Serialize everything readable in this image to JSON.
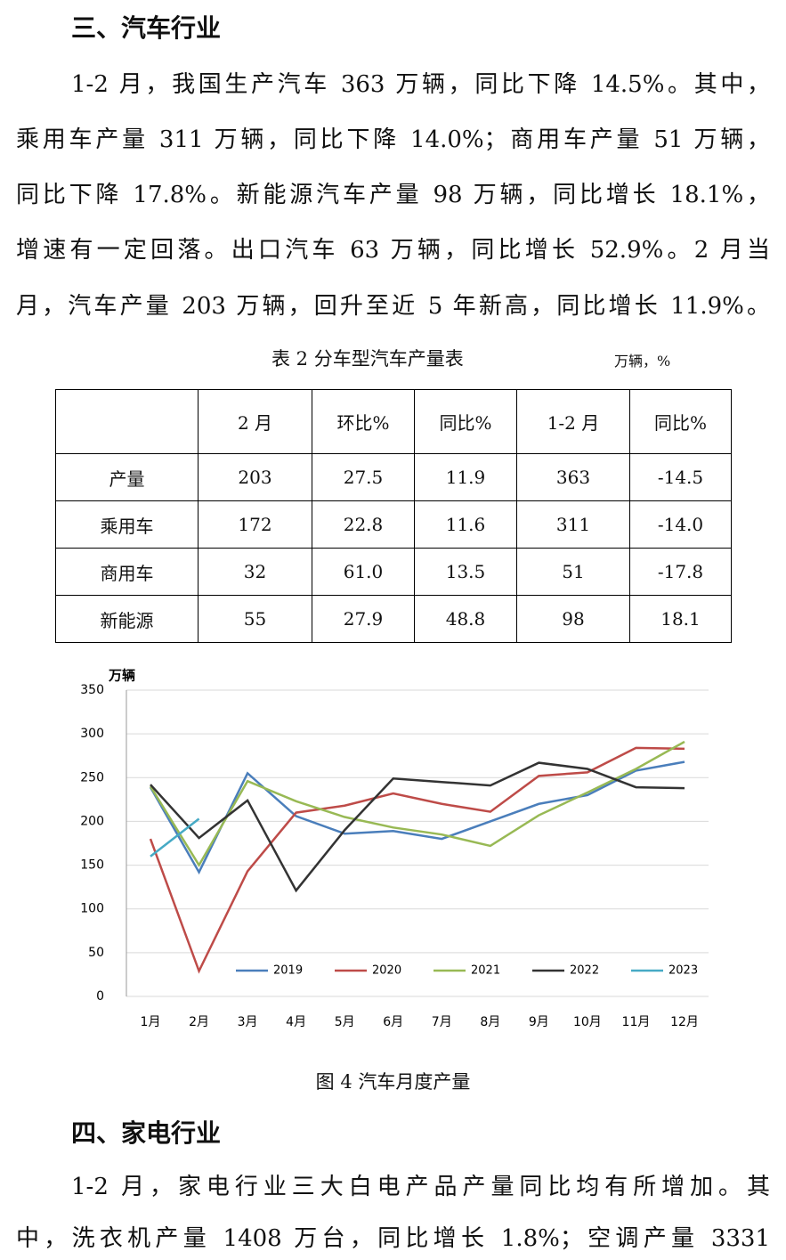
{
  "sections": [
    {
      "heading": "三、汽车行业",
      "lines": [
        "1-2 月，我国生产汽车 363 万辆，同比下降 14.5%。其中，",
        "乘用车产量 311 万辆，同比下降 14.0%；商用车产量 51 万辆，",
        "同比下降 17.8%。新能源汽车产量 98 万辆，同比增长 18.1%，",
        "增速有一定回落。出口汽车 63 万辆，同比增长 52.9%。2 月当",
        "月，汽车产量 203 万辆，回升至近 5 年新高，同比增长 11.9%。"
      ]
    },
    {
      "heading": "四、家电行业",
      "lines": [
        "1-2 月，家电行业三大白电产品产量同比均有所增加。其",
        "中，洗衣机产量 1408 万台，同比增长 1.8%；空调产量 3331"
      ]
    }
  ],
  "table": {
    "caption": "表 2 分车型汽车产量表",
    "unit": "万辆，%",
    "header": [
      "2 月",
      "环比%",
      "同比%",
      "1-2 月",
      "同比%"
    ],
    "rows": [
      [
        "产量",
        "203",
        "27.5",
        "11.9",
        "363",
        "-14.5"
      ],
      [
        "乘用车",
        "172",
        "22.8",
        "11.6",
        "311",
        "-14.0"
      ],
      [
        "商用车",
        "32",
        "61.0",
        "13.5",
        "51",
        "-17.8"
      ],
      [
        "新能源",
        "55",
        "27.9",
        "48.8",
        "98",
        "18.1"
      ]
    ]
  },
  "chart_data": {
    "type": "line",
    "y_label": "万辆",
    "categories": [
      "1月",
      "2月",
      "3月",
      "4月",
      "5月",
      "6月",
      "7月",
      "8月",
      "9月",
      "10月",
      "11月",
      "12月"
    ],
    "series": [
      {
        "name": "2019",
        "color": "#4a7ebb",
        "values": [
          239,
          142,
          255,
          206,
          186,
          189,
          180,
          200,
          220,
          230,
          258,
          268
        ]
      },
      {
        "name": "2020",
        "color": "#be4b48",
        "values": [
          180,
          29,
          143,
          210,
          218,
          232,
          220,
          211,
          252,
          256,
          284,
          283
        ]
      },
      {
        "name": "2021",
        "color": "#98b954",
        "values": [
          240,
          150,
          246,
          223,
          205,
          193,
          185,
          172,
          207,
          233,
          260,
          291
        ]
      },
      {
        "name": "2022",
        "color": "#333333",
        "values": [
          242,
          181,
          224,
          121,
          190,
          249,
          245,
          241,
          267,
          260,
          239,
          238
        ]
      },
      {
        "name": "2023",
        "color": "#46aac5",
        "values": [
          160,
          203,
          null,
          null,
          null,
          null,
          null,
          null,
          null,
          null,
          null,
          null
        ]
      }
    ],
    "ylim": [
      0,
      350
    ],
    "yticks": [
      0,
      50,
      100,
      150,
      200,
      250,
      300,
      350
    ],
    "grid": true,
    "legend": "bottom"
  },
  "figure_caption": "图 4 汽车月度产量"
}
